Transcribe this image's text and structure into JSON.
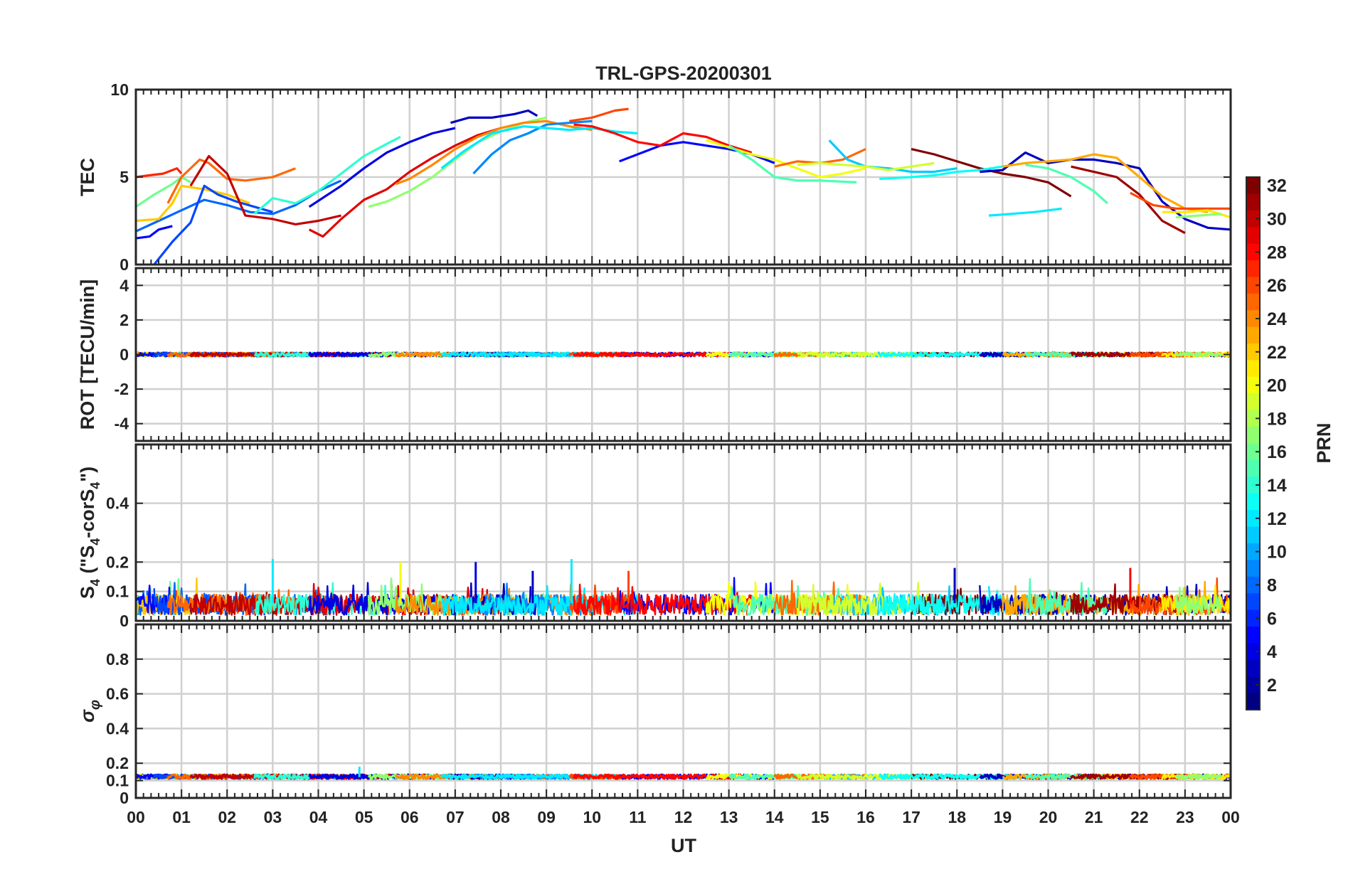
{
  "chart_data": {
    "type": "line",
    "title": "TRL-GPS-20200301",
    "xlabel": "UT",
    "x_tick_labels": [
      "00",
      "01",
      "02",
      "03",
      "04",
      "05",
      "06",
      "07",
      "08",
      "09",
      "10",
      "11",
      "12",
      "13",
      "14",
      "15",
      "16",
      "17",
      "18",
      "19",
      "20",
      "21",
      "22",
      "23",
      "00"
    ],
    "xlim": [
      0,
      24
    ],
    "grid": true,
    "panels": [
      {
        "id": "tec",
        "ylabel": "TEC",
        "ylim": [
          0,
          10
        ],
        "y_ticks": [
          0,
          5,
          10
        ],
        "series": [
          {
            "prn": 27,
            "x": [
              0.0,
              0.3,
              0.6,
              0.9,
              1.0
            ],
            "y": [
              5.0,
              5.1,
              5.2,
              5.5,
              5.2
            ]
          },
          {
            "prn": 16,
            "x": [
              0.0,
              0.4,
              0.8,
              1.0,
              1.2
            ],
            "y": [
              3.3,
              4.0,
              4.6,
              5.0,
              4.7
            ]
          },
          {
            "prn": 8,
            "x": [
              0.0,
              0.5,
              1.0,
              1.5,
              2.0,
              2.5,
              3.0,
              3.5,
              4.0,
              4.5
            ],
            "y": [
              1.9,
              2.5,
              3.1,
              3.7,
              3.4,
              3.0,
              2.9,
              3.4,
              4.2,
              4.8
            ]
          },
          {
            "prn": 22,
            "x": [
              0.0,
              0.5,
              0.8,
              1.0,
              1.5,
              2.0,
              2.5
            ],
            "y": [
              2.5,
              2.6,
              3.5,
              4.5,
              4.3,
              4.0,
              3.5
            ]
          },
          {
            "prn": 5,
            "x": [
              0.0,
              0.3,
              0.5,
              0.8
            ],
            "y": [
              1.5,
              1.6,
              2.0,
              2.2
            ]
          },
          {
            "prn": 7,
            "x": [
              0.4,
              0.8,
              1.2,
              1.5,
              1.8,
              2.2,
              2.6,
              3.0
            ],
            "y": [
              0.0,
              1.3,
              2.4,
              4.5,
              4.0,
              3.6,
              3.3,
              3.0
            ]
          },
          {
            "prn": 25,
            "x": [
              0.7,
              1.0,
              1.4,
              1.6,
              2.0,
              2.4,
              3.0,
              3.5
            ],
            "y": [
              3.5,
              5.0,
              6.0,
              5.8,
              4.9,
              4.8,
              5.0,
              5.5
            ]
          },
          {
            "prn": 30,
            "x": [
              1.2,
              1.6,
              2.0,
              2.4,
              3.0,
              3.5,
              4.0,
              4.5
            ],
            "y": [
              4.5,
              6.2,
              5.2,
              2.8,
              2.6,
              2.3,
              2.5,
              2.8
            ]
          },
          {
            "prn": 14,
            "x": [
              2.6,
              3.0,
              3.5,
              4.0,
              4.5,
              5.0,
              5.5,
              5.8
            ],
            "y": [
              2.9,
              3.8,
              3.5,
              4.2,
              5.2,
              6.2,
              6.9,
              7.3
            ]
          },
          {
            "prn": 29,
            "x": [
              3.8,
              4.1,
              4.5,
              5.0,
              5.5,
              6.0,
              6.5,
              7.0,
              7.5,
              8.0
            ],
            "y": [
              2.0,
              1.6,
              2.6,
              3.7,
              4.3,
              5.3,
              6.1,
              6.8,
              7.4,
              7.8
            ]
          },
          {
            "prn": 4,
            "x": [
              3.8,
              4.5,
              5.0,
              5.5,
              6.0,
              6.5,
              7.0
            ],
            "y": [
              3.3,
              4.5,
              5.5,
              6.4,
              7.0,
              7.5,
              7.8
            ]
          },
          {
            "prn": 17,
            "x": [
              5.1,
              5.5,
              6.0,
              6.5,
              7.0,
              7.5,
              8.0,
              8.5,
              9.0
            ],
            "y": [
              3.3,
              3.6,
              4.2,
              5.0,
              6.0,
              7.0,
              7.6,
              8.1,
              8.4
            ]
          },
          {
            "prn": 24,
            "x": [
              5.7,
              6.0,
              6.5,
              7.0,
              7.5,
              8.0,
              8.5,
              9.0,
              9.5,
              10.0
            ],
            "y": [
              4.6,
              4.9,
              5.7,
              6.6,
              7.3,
              7.8,
              8.1,
              8.2,
              7.9,
              7.7
            ]
          },
          {
            "prn": 3,
            "x": [
              6.9,
              7.3,
              7.8,
              8.3,
              8.6,
              8.8
            ],
            "y": [
              8.1,
              8.4,
              8.4,
              8.6,
              8.8,
              8.5
            ]
          },
          {
            "prn": 9,
            "x": [
              7.4,
              7.8,
              8.2,
              8.6,
              9.0,
              9.5,
              10.0
            ],
            "y": [
              5.2,
              6.3,
              7.1,
              7.5,
              8.0,
              8.1,
              8.2
            ]
          },
          {
            "prn": 12,
            "x": [
              6.7,
              7.2,
              7.8,
              8.5,
              9.0,
              9.5,
              10.0,
              10.5,
              11.0
            ],
            "y": [
              5.5,
              6.5,
              7.5,
              7.9,
              7.8,
              7.7,
              7.8,
              7.6,
              7.5
            ]
          },
          {
            "prn": 26,
            "x": [
              9.5,
              10.0,
              10.5,
              10.8
            ],
            "y": [
              8.2,
              8.4,
              8.8,
              8.9
            ]
          },
          {
            "prn": 5,
            "x": [
              10.6,
              11.0,
              11.5,
              12.0,
              12.5,
              13.0,
              13.5,
              14.0
            ],
            "y": [
              5.9,
              6.3,
              6.8,
              7.0,
              6.8,
              6.6,
              6.3,
              5.8
            ]
          },
          {
            "prn": 28,
            "x": [
              9.6,
              10.0,
              10.5,
              11.0,
              11.5,
              12.0,
              12.5,
              13.0,
              13.5
            ],
            "y": [
              8.0,
              7.9,
              7.5,
              7.0,
              6.8,
              7.5,
              7.3,
              6.8,
              6.4
            ]
          },
          {
            "prn": 20,
            "x": [
              12.5,
              13.0,
              13.5,
              14.0,
              14.5,
              15.0,
              15.5,
              16.0
            ],
            "y": [
              7.1,
              6.7,
              6.3,
              6.0,
              5.5,
              5.0,
              5.2,
              5.5
            ]
          },
          {
            "prn": 15,
            "x": [
              13.0,
              13.5,
              14.0,
              14.5,
              15.0,
              15.8
            ],
            "y": [
              6.8,
              6.0,
              5.0,
              4.8,
              4.8,
              4.7
            ]
          },
          {
            "prn": 25,
            "x": [
              14.0,
              14.5,
              15.0,
              15.5,
              16.0
            ],
            "y": [
              5.6,
              5.9,
              5.8,
              6.0,
              6.6
            ]
          },
          {
            "prn": 11,
            "x": [
              15.2,
              15.6,
              16.0,
              16.5,
              17.0,
              17.5,
              18.0
            ],
            "y": [
              7.1,
              6.0,
              5.6,
              5.5,
              5.3,
              5.3,
              5.5
            ]
          },
          {
            "prn": 19,
            "x": [
              14.5,
              15.0,
              15.5,
              16.0,
              16.5,
              17.0,
              17.5
            ],
            "y": [
              5.7,
              5.8,
              5.7,
              5.6,
              5.4,
              5.6,
              5.8
            ]
          },
          {
            "prn": 32,
            "x": [
              17.0,
              17.5,
              18.0,
              18.5,
              19.0,
              19.5,
              20.0,
              20.5
            ],
            "y": [
              6.6,
              6.3,
              5.9,
              5.5,
              5.2,
              5.0,
              4.7,
              3.9
            ]
          },
          {
            "prn": 13,
            "x": [
              16.3,
              17.0,
              17.5,
              18.0,
              18.5,
              19.0
            ],
            "y": [
              4.9,
              5.0,
              5.1,
              5.3,
              5.4,
              5.6
            ]
          },
          {
            "prn": 12,
            "x": [
              18.7,
              19.2,
              19.7,
              20.3
            ],
            "y": [
              2.8,
              2.9,
              3.0,
              3.2
            ]
          },
          {
            "prn": 3,
            "x": [
              18.5,
              19.0,
              19.5,
              20.0,
              20.5,
              21.0,
              21.5,
              22.0,
              22.5,
              23.0,
              23.5,
              24.0
            ],
            "y": [
              5.3,
              5.4,
              6.4,
              5.8,
              6.0,
              6.0,
              5.8,
              5.5,
              3.6,
              2.6,
              2.1,
              2.0
            ]
          },
          {
            "prn": 23,
            "x": [
              19.0,
              19.5,
              20.0,
              20.5,
              21.0,
              21.5,
              22.0,
              22.5,
              23.0,
              23.5
            ],
            "y": [
              5.6,
              5.8,
              5.9,
              6.0,
              6.3,
              6.1,
              5.0,
              3.9,
              3.2,
              3.0
            ]
          },
          {
            "prn": 15,
            "x": [
              19.5,
              20.0,
              20.5,
              21.0,
              21.3
            ],
            "y": [
              5.7,
              5.5,
              5.0,
              4.2,
              3.5
            ]
          },
          {
            "prn": 31,
            "x": [
              20.5,
              21.0,
              21.5,
              22.0,
              22.5,
              23.0
            ],
            "y": [
              5.6,
              5.3,
              5.0,
              4.0,
              2.5,
              1.8
            ]
          },
          {
            "prn": 26,
            "x": [
              21.8,
              22.3,
              22.8,
              23.3,
              24.0
            ],
            "y": [
              4.1,
              3.4,
              3.2,
              3.2,
              3.2
            ]
          },
          {
            "prn": 21,
            "x": [
              22.5,
              23.0,
              23.5,
              24.0
            ],
            "y": [
              3.0,
              3.0,
              3.1,
              2.7
            ]
          },
          {
            "prn": 17,
            "x": [
              22.8,
              23.3,
              23.8
            ],
            "y": [
              2.7,
              2.8,
              2.9
            ]
          }
        ]
      },
      {
        "id": "rot",
        "ylabel": "ROT [TECU/min]",
        "ylim": [
          -5,
          5
        ],
        "y_ticks": [
          -4,
          -2,
          0,
          2,
          4
        ],
        "note": "all PRN traces stay within about ±0.3 TECU/min of zero"
      },
      {
        "id": "s4",
        "ylabel": "S4 (\"S4-corS4\")",
        "ylim": [
          0,
          0.6
        ],
        "y_ticks": [
          0,
          0.1,
          0.2,
          0.4
        ],
        "note": "baseline 0.02–0.10, spikes up to about 0.21",
        "peaks": [
          {
            "x": 3.0,
            "y": 0.21
          },
          {
            "x": 7.45,
            "y": 0.2
          },
          {
            "x": 9.55,
            "y": 0.21
          },
          {
            "x": 5.8,
            "y": 0.2
          },
          {
            "x": 17.95,
            "y": 0.18
          },
          {
            "x": 21.8,
            "y": 0.18
          },
          {
            "x": 10.8,
            "y": 0.17
          },
          {
            "x": 8.7,
            "y": 0.17
          }
        ]
      },
      {
        "id": "sigma_phi",
        "ylabel": "σφ",
        "ylim": [
          0,
          1
        ],
        "y_ticks": [
          0,
          0.1,
          0.2,
          0.4,
          0.6,
          0.8
        ],
        "note": "flat near 0.12 for all PRNs",
        "peaks": [
          {
            "x": 4.9,
            "y": 0.18
          }
        ]
      }
    ],
    "colorbar": {
      "label": "PRN",
      "ticks": [
        2,
        4,
        6,
        8,
        10,
        12,
        14,
        16,
        18,
        20,
        22,
        24,
        26,
        28,
        30,
        32
      ],
      "range": [
        1,
        32
      ],
      "colormap": "jet"
    }
  }
}
